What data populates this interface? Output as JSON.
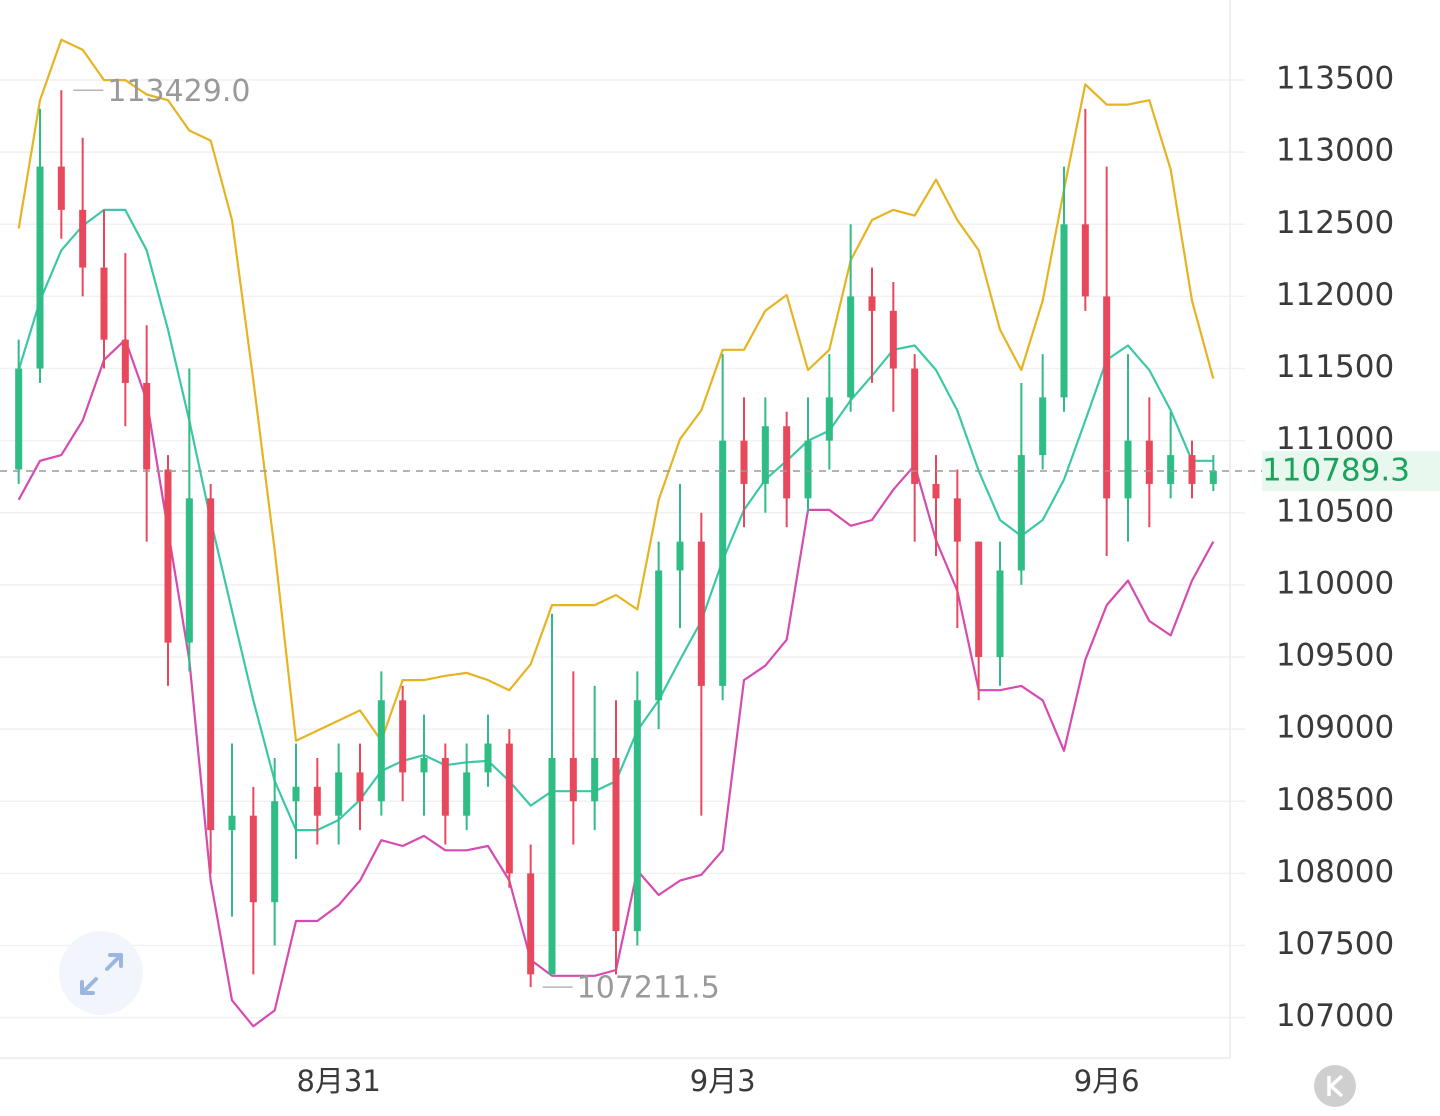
{
  "chart_data": {
    "type": "candlestick",
    "up_color": "#2ebd85",
    "down_color": "#e8485c",
    "grid": true,
    "categories": [
      null,
      null,
      null,
      null,
      null,
      null,
      null,
      null,
      null,
      null,
      null,
      null,
      null,
      null,
      null,
      "8月31",
      null,
      null,
      null,
      null,
      null,
      null,
      null,
      null,
      null,
      null,
      null,
      null,
      null,
      null,
      null,
      null,
      null,
      "9月3",
      null,
      null,
      null,
      null,
      null,
      null,
      null,
      null,
      null,
      null,
      null,
      null,
      null,
      null,
      null,
      null,
      null,
      "9月6",
      null,
      null,
      null,
      null,
      null
    ],
    "open": [
      110800,
      111500,
      112900,
      112600,
      112200,
      111700,
      111400,
      110800,
      109600,
      110600,
      108300,
      108400,
      107800,
      108500,
      108600,
      108400,
      108700,
      108500,
      109200,
      108700,
      108800,
      108400,
      108700,
      108900,
      108000,
      107300,
      108800,
      108500,
      108800,
      107600,
      109200,
      110100,
      110300,
      109300,
      111000,
      110700,
      111100,
      110600,
      111000,
      111300,
      112000,
      111900,
      111500,
      110700,
      110600,
      110300,
      109500,
      110100,
      110900,
      111300,
      112500,
      112000,
      110600,
      111000,
      110700,
      110900,
      110700
    ],
    "high": [
      111700,
      113300,
      113429,
      113100,
      112600,
      112300,
      111800,
      110900,
      111500,
      110700,
      108900,
      108600,
      108800,
      108900,
      108800,
      108900,
      108900,
      109400,
      109300,
      109100,
      108900,
      108900,
      109100,
      109000,
      108200,
      109800,
      109400,
      109300,
      109200,
      109400,
      110300,
      110700,
      110500,
      111600,
      111300,
      111300,
      111200,
      111300,
      111600,
      112500,
      112200,
      112100,
      111600,
      110900,
      110800,
      110300,
      110300,
      111400,
      111600,
      112900,
      113300,
      112900,
      111600,
      111300,
      111200,
      111000,
      110900
    ],
    "low": [
      110700,
      111400,
      112400,
      112000,
      111500,
      111100,
      110300,
      109300,
      109400,
      108000,
      107700,
      107300,
      107500,
      108100,
      108200,
      108200,
      108300,
      108400,
      108500,
      108400,
      108200,
      108300,
      108600,
      107900,
      107211.5,
      107300,
      108200,
      108300,
      107300,
      107500,
      109000,
      109700,
      108400,
      109200,
      110400,
      110500,
      110400,
      110500,
      110800,
      111200,
      111400,
      111200,
      110300,
      110200,
      109700,
      109200,
      109300,
      110000,
      110800,
      111200,
      111900,
      110200,
      110300,
      110400,
      110600,
      110600,
      110650
    ],
    "close": [
      111500,
      112900,
      112600,
      112200,
      111700,
      111400,
      110800,
      109600,
      110600,
      108300,
      108400,
      107800,
      108500,
      108600,
      108400,
      108700,
      108500,
      109200,
      108700,
      108800,
      108400,
      108700,
      108900,
      108000,
      107300,
      108800,
      108500,
      108800,
      107600,
      109200,
      110100,
      110300,
      109300,
      111000,
      110700,
      111100,
      110600,
      111000,
      111300,
      112000,
      111900,
      111500,
      110700,
      110600,
      110300,
      109500,
      110100,
      110900,
      111300,
      112500,
      112000,
      110600,
      111000,
      110700,
      110900,
      110700,
      110789.3
    ],
    "upper_band": {
      "color": "#e6b422",
      "values": [
        112470,
        113360,
        113780,
        113710,
        113500,
        113500,
        113400,
        113360,
        113150,
        113080,
        112530,
        111420,
        110240,
        108920,
        108990,
        109060,
        109130,
        108920,
        109340,
        109340,
        109370,
        109390,
        109340,
        109270,
        109450,
        109860,
        109860,
        109860,
        109930,
        109830,
        110590,
        111010,
        111210,
        111630,
        111630,
        111900,
        112010,
        111490,
        111630,
        112250,
        112530,
        112600,
        112560,
        112810,
        112530,
        112320,
        111770,
        111490,
        111970,
        112740,
        113470,
        113330,
        113330,
        113360,
        112880,
        111970,
        111430
      ]
    },
    "middle_band": {
      "color": "#3cc8a8",
      "values": [
        111490,
        111970,
        112320,
        112490,
        112600,
        112600,
        112320,
        111770,
        111140,
        110450,
        109820,
        109200,
        108640,
        108300,
        108300,
        108370,
        108510,
        108710,
        108780,
        108820,
        108750,
        108770,
        108780,
        108640,
        108470,
        108570,
        108570,
        108570,
        108640,
        108990,
        109200,
        109480,
        109750,
        110170,
        110520,
        110730,
        110860,
        111000,
        111070,
        111280,
        111450,
        111630,
        111660,
        111490,
        111210,
        110790,
        110450,
        110340,
        110450,
        110730,
        111140,
        111560,
        111660,
        111490,
        111210,
        110860,
        110860
      ]
    },
    "lower_band": {
      "color": "#d64bb0",
      "values": [
        110590,
        110860,
        110900,
        111140,
        111560,
        111700,
        111280,
        110380,
        109480,
        107950,
        107120,
        106940,
        107050,
        107670,
        107670,
        107780,
        107950,
        108230,
        108190,
        108260,
        108160,
        108160,
        108190,
        107950,
        107400,
        107290,
        107290,
        107290,
        107330,
        108020,
        107850,
        107950,
        107990,
        108160,
        109340,
        109440,
        109620,
        110520,
        110520,
        110410,
        110450,
        110660,
        110830,
        110310,
        109960,
        109270,
        109270,
        109300,
        109200,
        108850,
        109480,
        109860,
        110030,
        109750,
        109650,
        110030,
        110300
      ]
    },
    "annotations": [
      {
        "value": 113429,
        "label": "113429.0"
      },
      {
        "value": 107211.5,
        "label": "107211.5"
      }
    ],
    "last_price": 110789.3,
    "last_price_color": "#1aa35a",
    "ylim": [
      106720,
      114055
    ],
    "yticks": [
      107000,
      107500,
      108000,
      108500,
      109000,
      109500,
      110000,
      110500,
      111000,
      111500,
      112000,
      112500,
      113000,
      113500
    ]
  }
}
